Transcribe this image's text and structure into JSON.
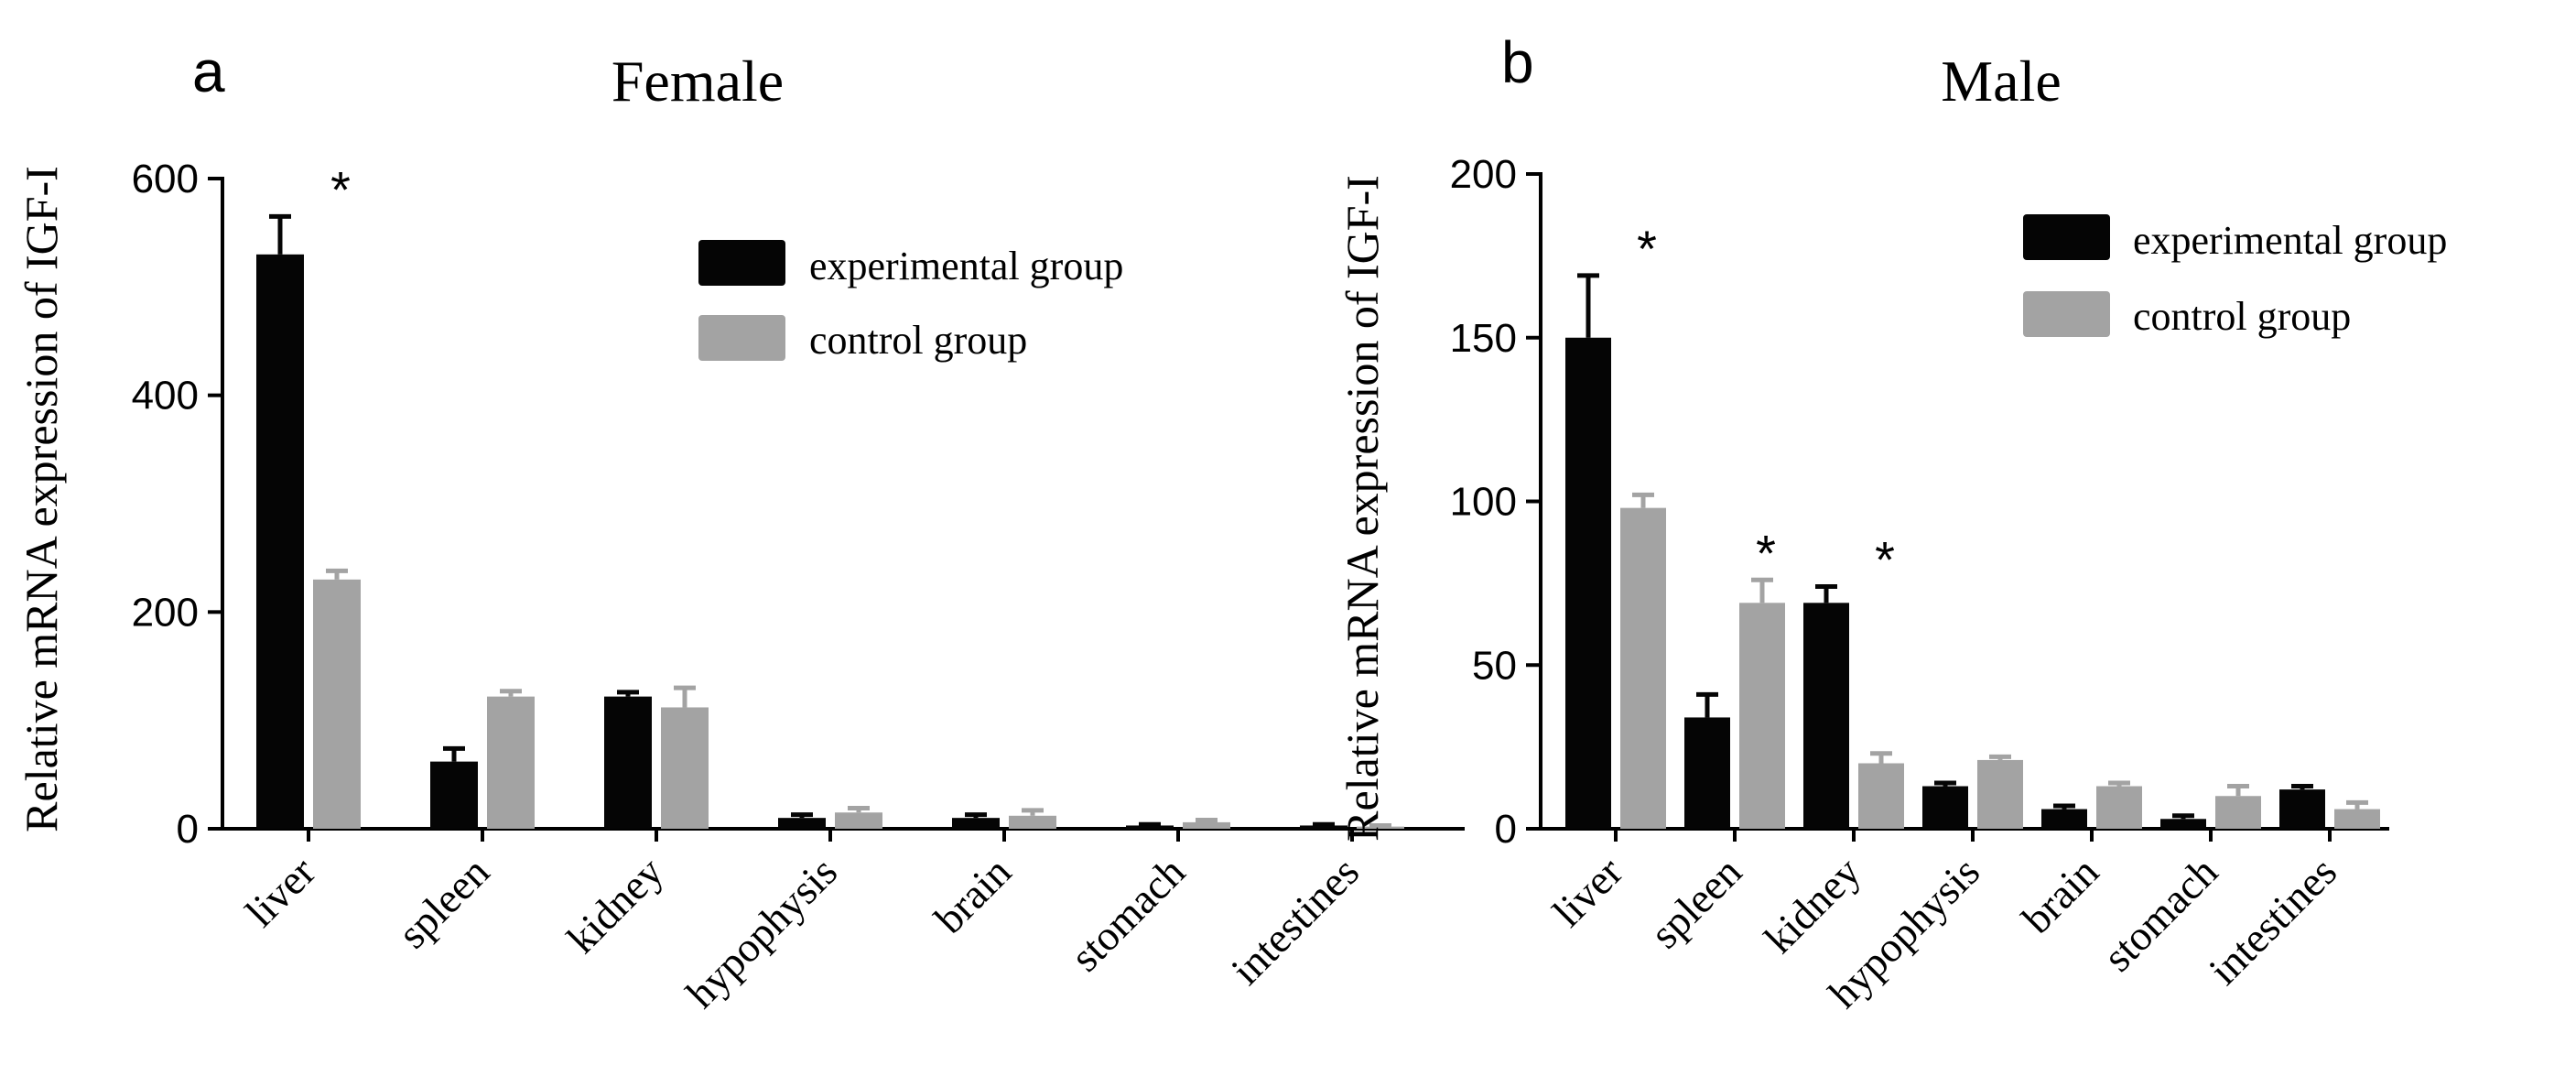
{
  "figure": {
    "colors": {
      "experimental": "#050505",
      "control": "#a3a3a3",
      "axis": "#000000",
      "background": "#ffffff"
    }
  },
  "chart_data": [
    {
      "type": "bar",
      "panel_label": "a",
      "title": "Female",
      "xlabel": "",
      "ylabel": "Relative mRNA expression of IGF-I",
      "categories": [
        "liver",
        "spleen",
        "kidney",
        "hypophysis",
        "brain",
        "stomach",
        "intestines"
      ],
      "ylim": [
        0,
        600
      ],
      "yticks": [
        0,
        200,
        400,
        600
      ],
      "ytick_labels": [
        "0",
        "200",
        "400",
        "600"
      ],
      "series": [
        {
          "name": "experimental group",
          "values": [
            530,
            62,
            122,
            10,
            10,
            3,
            3
          ],
          "errors": [
            35,
            12,
            4,
            3,
            3,
            1,
            1
          ]
        },
        {
          "name": "control group",
          "values": [
            230,
            122,
            112,
            15,
            12,
            6,
            2
          ],
          "errors": [
            8,
            5,
            18,
            4,
            5,
            2,
            1
          ]
        }
      ],
      "significance": [
        "*",
        "",
        "",
        "",
        "",
        "",
        ""
      ],
      "legend": "top-right"
    },
    {
      "type": "bar",
      "panel_label": "b",
      "title": "Male",
      "xlabel": "",
      "ylabel": "Relative mRNA expression of IGF-I",
      "categories": [
        "liver",
        "spleen",
        "kidney",
        "hypophysis",
        "brain",
        "stomach",
        "intestines"
      ],
      "ylim": [
        0,
        200
      ],
      "yticks": [
        0,
        50,
        100,
        150,
        200
      ],
      "ytick_labels": [
        "0",
        "50",
        "100",
        "150",
        "200"
      ],
      "series": [
        {
          "name": "experimental group",
          "values": [
            150,
            34,
            69,
            13,
            6,
            3,
            12
          ],
          "errors": [
            19,
            7,
            5,
            1,
            1,
            1,
            1
          ]
        },
        {
          "name": "control group",
          "values": [
            98,
            69,
            20,
            21,
            13,
            10,
            6
          ],
          "errors": [
            4,
            7,
            3,
            1,
            1,
            3,
            2
          ]
        }
      ],
      "significance": [
        "*",
        "*",
        "*",
        "",
        "",
        "",
        ""
      ],
      "legend": "top-right"
    }
  ]
}
